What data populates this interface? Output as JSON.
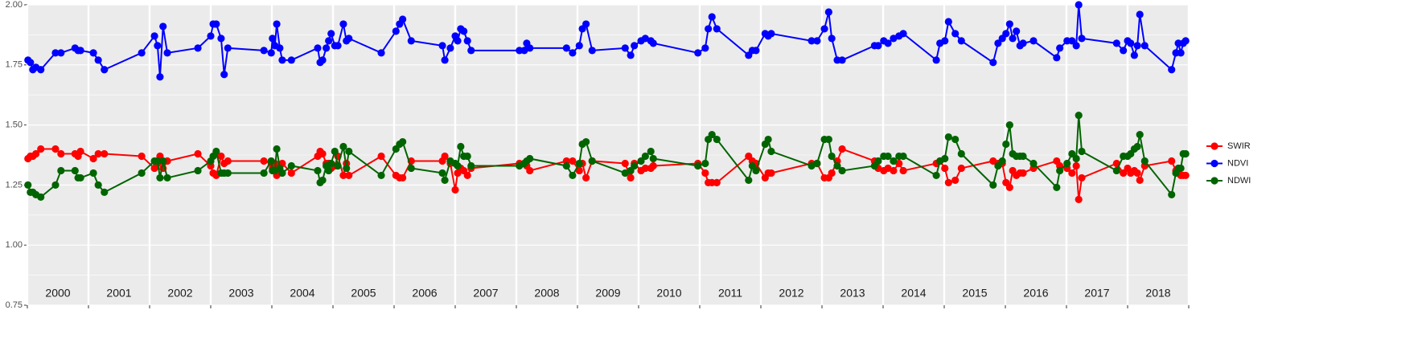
{
  "chart_data": {
    "type": "line",
    "legend": "right",
    "grid": true,
    "xlim": [
      2000,
      2019
    ],
    "xticks": [
      2000,
      2001,
      2002,
      2003,
      2004,
      2005,
      2006,
      2007,
      2008,
      2009,
      2010,
      2011,
      2012,
      2013,
      2014,
      2015,
      2016,
      2017,
      2018,
      2019
    ],
    "year_labels": [
      2000,
      2001,
      2002,
      2003,
      2004,
      2005,
      2006,
      2007,
      2008,
      2009,
      2010,
      2011,
      2012,
      2013,
      2014,
      2015,
      2016,
      2017,
      2018
    ],
    "ylim": [
      0.75,
      2.0
    ],
    "yticks": [
      0.75,
      {
        "value": 1,
        "label": "1.00"
      },
      1.25,
      {
        "value": 1.5,
        "label": "1.50"
      },
      1.75,
      {
        "value": 2,
        "label": "2.00"
      }
    ],
    "x": [
      2000.01,
      2000.05,
      2000.09,
      2000.14,
      2000.22,
      2000.46,
      2000.55,
      2000.78,
      2000.83,
      2000.87,
      2001.08,
      2001.16,
      2001.26,
      2001.87,
      2002.08,
      2002.13,
      2002.17,
      2002.22,
      2002.29,
      2002.79,
      2003.0,
      2003.04,
      2003.09,
      2003.17,
      2003.22,
      2003.28,
      2003.87,
      2003.99,
      2004.01,
      2004.05,
      2004.08,
      2004.13,
      2004.17,
      2004.32,
      2004.75,
      2004.79,
      2004.83,
      2004.89,
      2004.93,
      2004.97,
      2005.03,
      2005.08,
      2005.17,
      2005.22,
      2005.26,
      2005.79,
      2006.03,
      2006.09,
      2006.14,
      2006.28,
      2006.79,
      2006.83,
      2006.92,
      2007.0,
      2007.04,
      2007.09,
      2007.14,
      2007.2,
      2007.26,
      2008.05,
      2008.13,
      2008.17,
      2008.22,
      2008.82,
      2008.92,
      2009.03,
      2009.08,
      2009.14,
      2009.24,
      2009.78,
      2009.87,
      2009.93,
      2010.04,
      2010.11,
      2010.2,
      2010.24,
      2010.97,
      2011.09,
      2011.14,
      2011.2,
      2011.28,
      2011.8,
      2011.86,
      2011.92,
      2012.07,
      2012.12,
      2012.17,
      2012.83,
      2012.92,
      2013.04,
      2013.11,
      2013.16,
      2013.25,
      2013.33,
      2013.86,
      2013.92,
      2014.01,
      2014.08,
      2014.17,
      2014.26,
      2014.33,
      2014.87,
      2014.93,
      2015.01,
      2015.07,
      2015.18,
      2015.28,
      2015.8,
      2015.88,
      2015.95,
      2016.01,
      2016.07,
      2016.12,
      2016.18,
      2016.24,
      2016.29,
      2016.46,
      2016.84,
      2016.89,
      2017.01,
      2017.09,
      2017.16,
      2017.2,
      2017.25,
      2017.82,
      2017.93,
      2018.0,
      2018.05,
      2018.11,
      2018.16,
      2018.2,
      2018.28,
      2018.72,
      2018.79,
      2018.83,
      2018.87,
      2018.91,
      2018.95
    ],
    "series": [
      {
        "name": "SWIR",
        "color": "#ff0000",
        "values": [
          1.36,
          1.37,
          1.37,
          1.38,
          1.4,
          1.4,
          1.38,
          1.38,
          1.37,
          1.39,
          1.36,
          1.38,
          1.38,
          1.37,
          1.32,
          1.34,
          1.37,
          1.32,
          1.35,
          1.38,
          1.33,
          1.3,
          1.29,
          1.37,
          1.34,
          1.35,
          1.35,
          1.34,
          1.32,
          1.34,
          1.29,
          1.33,
          1.34,
          1.3,
          1.37,
          1.39,
          1.38,
          1.34,
          1.34,
          1.32,
          1.33,
          1.37,
          1.29,
          1.34,
          1.29,
          1.37,
          1.29,
          1.28,
          1.28,
          1.35,
          1.35,
          1.37,
          1.34,
          1.23,
          1.3,
          1.32,
          1.31,
          1.29,
          1.32,
          1.34,
          1.34,
          1.33,
          1.31,
          1.35,
          1.35,
          1.31,
          1.34,
          1.28,
          1.35,
          1.34,
          1.28,
          1.34,
          1.31,
          1.32,
          1.32,
          1.33,
          1.34,
          1.3,
          1.26,
          1.26,
          1.26,
          1.37,
          1.35,
          1.34,
          1.28,
          1.3,
          1.3,
          1.34,
          1.34,
          1.28,
          1.28,
          1.3,
          1.35,
          1.4,
          1.35,
          1.32,
          1.31,
          1.32,
          1.31,
          1.34,
          1.31,
          1.34,
          1.35,
          1.32,
          1.26,
          1.27,
          1.32,
          1.35,
          1.34,
          1.34,
          1.26,
          1.24,
          1.31,
          1.29,
          1.3,
          1.3,
          1.32,
          1.35,
          1.33,
          1.32,
          1.3,
          1.33,
          1.19,
          1.28,
          1.34,
          1.3,
          1.32,
          1.3,
          1.31,
          1.3,
          1.27,
          1.33,
          1.35,
          1.31,
          1.3,
          1.29,
          1.29,
          1.29
        ]
      },
      {
        "name": "NDVI",
        "color": "#0000ff",
        "values": [
          1.77,
          1.76,
          1.73,
          1.74,
          1.73,
          1.8,
          1.8,
          1.82,
          1.81,
          1.81,
          1.8,
          1.77,
          1.73,
          1.8,
          1.87,
          1.83,
          1.7,
          1.91,
          1.8,
          1.82,
          1.87,
          1.92,
          1.92,
          1.86,
          1.71,
          1.82,
          1.81,
          1.8,
          1.86,
          1.83,
          1.92,
          1.82,
          1.77,
          1.77,
          1.82,
          1.76,
          1.77,
          1.82,
          1.85,
          1.88,
          1.83,
          1.83,
          1.92,
          1.85,
          1.86,
          1.8,
          1.89,
          1.92,
          1.94,
          1.85,
          1.83,
          1.77,
          1.82,
          1.87,
          1.85,
          1.9,
          1.89,
          1.85,
          1.81,
          1.81,
          1.81,
          1.84,
          1.82,
          1.82,
          1.8,
          1.83,
          1.9,
          1.92,
          1.81,
          1.82,
          1.79,
          1.83,
          1.85,
          1.86,
          1.85,
          1.84,
          1.8,
          1.82,
          1.9,
          1.95,
          1.9,
          1.79,
          1.81,
          1.81,
          1.88,
          1.87,
          1.88,
          1.85,
          1.85,
          1.9,
          1.97,
          1.86,
          1.77,
          1.77,
          1.83,
          1.83,
          1.85,
          1.84,
          1.86,
          1.87,
          1.88,
          1.77,
          1.84,
          1.85,
          1.93,
          1.88,
          1.85,
          1.76,
          1.84,
          1.86,
          1.88,
          1.92,
          1.86,
          1.89,
          1.83,
          1.84,
          1.85,
          1.78,
          1.82,
          1.85,
          1.85,
          1.83,
          2.0,
          1.86,
          1.84,
          1.81,
          1.85,
          1.84,
          1.79,
          1.83,
          1.96,
          1.83,
          1.73,
          1.8,
          1.84,
          1.8,
          1.84,
          1.85
        ]
      },
      {
        "name": "NDWI",
        "color": "#006400",
        "values": [
          1.25,
          1.22,
          1.22,
          1.21,
          1.2,
          1.25,
          1.31,
          1.31,
          1.28,
          1.28,
          1.3,
          1.25,
          1.22,
          1.3,
          1.35,
          1.35,
          1.28,
          1.35,
          1.28,
          1.31,
          1.35,
          1.37,
          1.39,
          1.3,
          1.3,
          1.3,
          1.3,
          1.35,
          1.31,
          1.31,
          1.4,
          1.32,
          1.3,
          1.33,
          1.31,
          1.26,
          1.27,
          1.33,
          1.31,
          1.34,
          1.39,
          1.33,
          1.41,
          1.32,
          1.39,
          1.29,
          1.4,
          1.42,
          1.43,
          1.32,
          1.3,
          1.27,
          1.35,
          1.34,
          1.33,
          1.41,
          1.37,
          1.37,
          1.33,
          1.33,
          1.34,
          1.35,
          1.36,
          1.33,
          1.29,
          1.34,
          1.42,
          1.43,
          1.35,
          1.3,
          1.31,
          1.33,
          1.35,
          1.37,
          1.39,
          1.36,
          1.33,
          1.34,
          1.44,
          1.46,
          1.44,
          1.27,
          1.33,
          1.31,
          1.42,
          1.44,
          1.39,
          1.33,
          1.34,
          1.44,
          1.44,
          1.37,
          1.33,
          1.31,
          1.33,
          1.35,
          1.37,
          1.37,
          1.35,
          1.37,
          1.37,
          1.29,
          1.35,
          1.36,
          1.45,
          1.44,
          1.38,
          1.25,
          1.33,
          1.35,
          1.42,
          1.5,
          1.38,
          1.37,
          1.37,
          1.37,
          1.34,
          1.24,
          1.31,
          1.34,
          1.38,
          1.36,
          1.54,
          1.39,
          1.31,
          1.37,
          1.37,
          1.38,
          1.4,
          1.41,
          1.46,
          1.35,
          1.21,
          1.3,
          1.32,
          1.32,
          1.38,
          1.38
        ]
      }
    ]
  }
}
